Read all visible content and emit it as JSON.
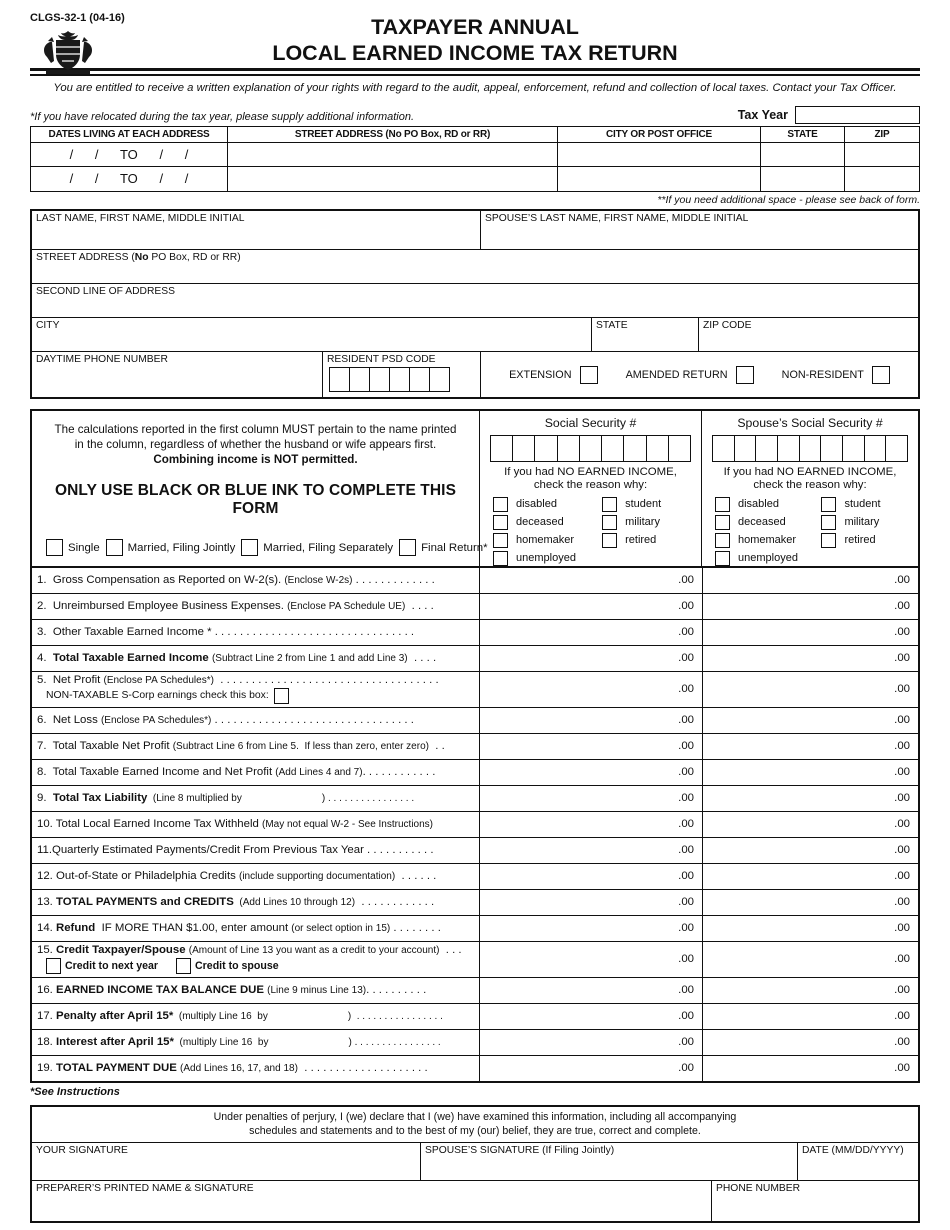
{
  "header": {
    "form_code": "CLGS-32-1 (04-16)",
    "title_line1": "TAXPAYER ANNUAL",
    "title_line2": "LOCAL EARNED INCOME TAX RETURN",
    "rights_notice": "You are entitled to receive a written explanation of your rights with regard to the audit, appeal, enforcement, refund and collection of local taxes. Contact your Tax Officer.",
    "relocated_note": "*If you have relocated during the tax year, please supply additional information.",
    "tax_year_label": "Tax Year"
  },
  "address_table": {
    "headers": [
      "DATES LIVING AT EACH ADDRESS",
      "STREET ADDRESS (No PO Box, RD or RR)",
      "CITY OR POST OFFICE",
      "STATE",
      "ZIP"
    ],
    "dates_placeholder": "/      /      TO      /      /",
    "extra_space_note": "**If you need additional space - please see back of form."
  },
  "taxpayer_info": {
    "name_label": "LAST NAME, FIRST NAME, MIDDLE INITIAL",
    "spouse_name_label": "SPOUSE’S LAST NAME, FIRST NAME, MIDDLE INITIAL",
    "street_pre": "STREET ADDRESS (",
    "street_no": "No",
    "street_post": " PO Box, RD or RR)",
    "second_line_label": "SECOND LINE OF ADDRESS",
    "city_label": "CITY",
    "state_label": "STATE",
    "zip_label": "ZIP CODE",
    "phone_label": "DAYTIME PHONE NUMBER",
    "psd_label": "RESIDENT PSD CODE",
    "extension_label": "EXTENSION",
    "amended_label": "AMENDED RETURN",
    "nonresident_label": "NON-RESIDENT"
  },
  "calc_box": {
    "note_line1": "The calculations reported in the first column MUST pertain to the name printed",
    "note_line2": "in the column, regardless of whether the husband or wife appears first.",
    "note_bold": "Combining income is NOT permitted.",
    "ink_warning": "ONLY USE BLACK OR BLUE INK TO COMPLETE THIS FORM",
    "statuses": [
      "Single",
      "Married, Filing Jointly",
      "Married, Filing Separately",
      "Final Return*"
    ]
  },
  "ssn": {
    "taxpayer_title": "Social Security #",
    "spouse_title": "Spouse’s Social Security #",
    "no_income_line1": "If you had NO EARNED INCOME,",
    "no_income_line2": "check the reason why:",
    "reasons_col1": [
      "disabled",
      "deceased",
      "homemaker",
      "unemployed"
    ],
    "reasons_col2": [
      "student",
      "military",
      "retired"
    ]
  },
  "lines": {
    "rows": [
      {
        "segs": [
          [
            "n",
            "1.  Gross Compensation as Reported on W-2(s). "
          ],
          [
            "s",
            "(Enclose W-2s)"
          ],
          [
            "n",
            " . . . . . . . . . . . . ."
          ]
        ],
        "c1": ".00",
        "c2": ".00"
      },
      {
        "segs": [
          [
            "n",
            "2.  Unreimbursed Employee Business Expenses. "
          ],
          [
            "s",
            "(Enclose PA Schedule UE)"
          ],
          [
            "n",
            "  . . . ."
          ]
        ],
        "c1": ".00",
        "c2": ".00"
      },
      {
        "segs": [
          [
            "n",
            "3.  Other Taxable Earned Income * "
          ],
          [
            "n",
            ". . . . . . . . . . . . . . . . . . . . . . . . . . . . . . . ."
          ]
        ],
        "c1": ".00",
        "c2": ".00"
      },
      {
        "segs": [
          [
            "n",
            "4.  "
          ],
          [
            "b",
            "Total Taxable Earned Income "
          ],
          [
            "s",
            "(Subtract Line 2 from Line 1 and add Line 3)"
          ],
          [
            "n",
            "  . . . ."
          ]
        ],
        "c1": ".00",
        "c2": ".00"
      },
      {
        "tall": true,
        "segs": [
          [
            "n",
            "5.  Net Profit "
          ],
          [
            "s",
            "(Enclose PA Schedules*)"
          ],
          [
            "n",
            "  . . . . . . . . . . . . . . . . . . . . . . . . . . . . . . . . . . ."
          ]
        ],
        "sub": {
          "type": "scorp",
          "text": "NON-TAXABLE S-Corp earnings check this box: "
        },
        "c1": ".00",
        "c2": ".00"
      },
      {
        "segs": [
          [
            "n",
            "6.  Net Loss "
          ],
          [
            "s",
            "(Enclose PA Schedules*)"
          ],
          [
            "n",
            " . . . . . . . . . . . . . . . . . . . . . . . . . . . . . . . ."
          ]
        ],
        "c1": ".00",
        "c2": ".00"
      },
      {
        "segs": [
          [
            "n",
            "7.  Total Taxable Net Profit "
          ],
          [
            "s",
            "(Subtract Line 6 from Line 5.  If less than zero, enter zero)"
          ],
          [
            "n",
            "  . ."
          ]
        ],
        "c1": ".00",
        "c2": ".00"
      },
      {
        "segs": [
          [
            "n",
            "8.  Total Taxable Earned Income and Net Profit "
          ],
          [
            "s",
            "(Add Lines 4 and 7)"
          ],
          [
            "n",
            ". . . . . . . . . . . ."
          ]
        ],
        "c1": ".00",
        "c2": ".00"
      },
      {
        "segs": [
          [
            "n",
            "9.  "
          ],
          [
            "b",
            "Total Tax Liability"
          ],
          [
            "s",
            "  (Line 8 multiplied by"
          ],
          [
            "g",
            ""
          ],
          [
            "s",
            ") . . . . . . . . . . . . . . . ."
          ]
        ],
        "c1": ".00",
        "c2": ".00"
      },
      {
        "segs": [
          [
            "n",
            "10. Total Local Earned Income Tax Withheld "
          ],
          [
            "s",
            "(May not equal W-2 - See Instructions)"
          ]
        ],
        "c1": ".00",
        "c2": ".00"
      },
      {
        "segs": [
          [
            "n",
            "11.Quarterly Estimated Payments/Credit From Previous Tax Year "
          ],
          [
            "n",
            ". . . . . . . . . . ."
          ]
        ],
        "c1": ".00",
        "c2": ".00"
      },
      {
        "segs": [
          [
            "n",
            "12. Out-of-State or Philadelphia Credits "
          ],
          [
            "s",
            "(include supporting documentation)"
          ],
          [
            "n",
            "  . . . . . ."
          ]
        ],
        "c1": ".00",
        "c2": ".00"
      },
      {
        "segs": [
          [
            "n",
            "13. "
          ],
          [
            "b",
            "TOTAL PAYMENTS and CREDITS"
          ],
          [
            "s",
            "  (Add Lines 10 through 12)"
          ],
          [
            "n",
            "  . . . . . . . . . . . ."
          ]
        ],
        "c1": ".00",
        "c2": ".00"
      },
      {
        "segs": [
          [
            "n",
            "14. "
          ],
          [
            "b",
            "Refund"
          ],
          [
            "n",
            "  IF MORE THAN $1.00, enter amount "
          ],
          [
            "s",
            "(or select option in 15)"
          ],
          [
            "n",
            " . . . . . . . ."
          ]
        ],
        "c1": ".00",
        "c2": ".00"
      },
      {
        "tall": true,
        "segs": [
          [
            "n",
            "15. "
          ],
          [
            "b",
            "Credit Taxpayer/Spouse "
          ],
          [
            "s",
            "(Amount of Line 13 you want as a credit to your account)"
          ],
          [
            "n",
            "  . . ."
          ]
        ],
        "sub": {
          "type": "credit",
          "items": [
            "Credit to next year",
            "Credit to spouse"
          ]
        },
        "c1": ".00",
        "c2": ".00"
      },
      {
        "segs": [
          [
            "n",
            "16. "
          ],
          [
            "b",
            "EARNED INCOME TAX BALANCE DUE "
          ],
          [
            "s",
            "(Line 9 minus Line 13)"
          ],
          [
            "n",
            ". . . . . . . . . ."
          ]
        ],
        "c1": ".00",
        "c2": ".00"
      },
      {
        "segs": [
          [
            "n",
            "17. "
          ],
          [
            "b",
            "Penalty after April 15*"
          ],
          [
            "s",
            "  (multiply Line 16  by"
          ],
          [
            "g",
            ""
          ],
          [
            "s",
            ")  . . . . . . . . . . . . . . . ."
          ]
        ],
        "c1": ".00",
        "c2": ".00"
      },
      {
        "segs": [
          [
            "n",
            "18. "
          ],
          [
            "b",
            "Interest after April 15*"
          ],
          [
            "s",
            "  (multiply Line 16  by"
          ],
          [
            "g",
            ""
          ],
          [
            "s",
            ") . . . . . . . . . . . . . . . ."
          ]
        ],
        "c1": ".00",
        "c2": ".00"
      },
      {
        "segs": [
          [
            "n",
            "19. "
          ],
          [
            "b",
            "TOTAL PAYMENT DUE "
          ],
          [
            "s",
            "(Add Lines 16, 17, and 18)"
          ],
          [
            "n",
            "  . . . . . . . . . . . . . . . . . . . ."
          ]
        ],
        "c1": ".00",
        "c2": ".00"
      }
    ],
    "see_instructions": "*See Instructions"
  },
  "signature": {
    "perjury_line1": "Under penalties of perjury, I (we) declare that I (we) have examined this information, including all accompanying",
    "perjury_line2": "schedules and statements and to the best of my (our) belief, they are true, correct and complete.",
    "your_signature_label": "YOUR SIGNATURE",
    "spouse_signature_label": "SPOUSE’S SIGNATURE (If Filing Jointly)",
    "date_label": "DATE (MM/DD/YYYY)",
    "preparer_label": "PREPARER’S PRINTED NAME & SIGNATURE",
    "phone_label": "PHONE NUMBER"
  },
  "colors": {
    "ink": "#111111",
    "paper": "#ffffff"
  }
}
